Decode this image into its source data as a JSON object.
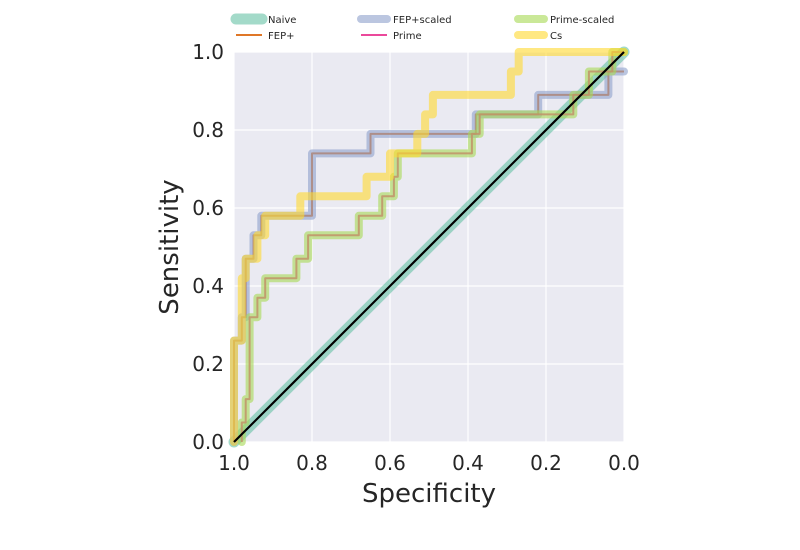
{
  "chart_data": {
    "type": "line",
    "title": "",
    "xlabel": "Specificity",
    "ylabel": "Sensitivity",
    "xlim": [
      1.0,
      0.0
    ],
    "ylim": [
      0.0,
      1.0
    ],
    "x_reversed": true,
    "grid": true,
    "background": "#eaeaf2",
    "legend": {
      "placement": "top",
      "columns": 3
    },
    "xticks": [
      "1.0",
      "0.8",
      "0.6",
      "0.4",
      "0.2",
      "0.0"
    ],
    "yticks": [
      "0.0",
      "0.2",
      "0.4",
      "0.6",
      "0.8",
      "1.0"
    ],
    "series": [
      {
        "name": "Naive",
        "color": "#66c2a5",
        "style": "thick",
        "x": [
          1.0,
          0.0
        ],
        "y": [
          0.0,
          1.0
        ]
      },
      {
        "name": "FEP+",
        "color": "#d95f02",
        "style": "thin",
        "x": [
          1.0,
          1.0,
          0.98,
          0.98,
          0.97,
          0.97,
          0.95,
          0.95,
          0.93,
          0.93,
          0.8,
          0.8,
          0.65,
          0.65,
          0.38,
          0.38,
          0.22,
          0.22,
          0.04,
          0.04,
          0.0
        ],
        "y": [
          0.0,
          0.26,
          0.26,
          0.32,
          0.32,
          0.47,
          0.47,
          0.53,
          0.53,
          0.58,
          0.58,
          0.74,
          0.74,
          0.79,
          0.79,
          0.84,
          0.84,
          0.89,
          0.89,
          0.95,
          0.95
        ]
      },
      {
        "name": "FEP+scaled",
        "color": "#8da0cb",
        "style": "thick",
        "x": [
          1.0,
          1.0,
          0.98,
          0.98,
          0.97,
          0.97,
          0.95,
          0.95,
          0.93,
          0.93,
          0.8,
          0.8,
          0.65,
          0.65,
          0.38,
          0.38,
          0.22,
          0.22,
          0.04,
          0.04,
          0.0
        ],
        "y": [
          0.0,
          0.26,
          0.26,
          0.32,
          0.32,
          0.47,
          0.47,
          0.53,
          0.53,
          0.58,
          0.58,
          0.74,
          0.74,
          0.79,
          0.79,
          0.84,
          0.84,
          0.89,
          0.89,
          0.95,
          0.95
        ]
      },
      {
        "name": "Prime",
        "color": "#e7298a",
        "style": "thin",
        "x": [
          0.98,
          0.98,
          0.97,
          0.97,
          0.96,
          0.96,
          0.94,
          0.94,
          0.92,
          0.92,
          0.84,
          0.84,
          0.81,
          0.81,
          0.68,
          0.68,
          0.62,
          0.62,
          0.59,
          0.59,
          0.58,
          0.58,
          0.39,
          0.39,
          0.37,
          0.37,
          0.13,
          0.13,
          0.09,
          0.09,
          0.03,
          0.03,
          0.01,
          0.01,
          0.0
        ],
        "y": [
          0.0,
          0.05,
          0.05,
          0.11,
          0.11,
          0.32,
          0.32,
          0.37,
          0.37,
          0.42,
          0.42,
          0.47,
          0.47,
          0.53,
          0.53,
          0.58,
          0.58,
          0.63,
          0.63,
          0.68,
          0.68,
          0.74,
          0.74,
          0.79,
          0.79,
          0.84,
          0.84,
          0.89,
          0.89,
          0.95,
          0.95,
          1.0,
          1.0,
          1.0,
          1.0
        ]
      },
      {
        "name": "Prime-scaled",
        "color": "#a6d854",
        "style": "thick",
        "x": [
          0.98,
          0.98,
          0.97,
          0.97,
          0.96,
          0.96,
          0.94,
          0.94,
          0.92,
          0.92,
          0.84,
          0.84,
          0.81,
          0.81,
          0.68,
          0.68,
          0.62,
          0.62,
          0.59,
          0.59,
          0.58,
          0.58,
          0.39,
          0.39,
          0.37,
          0.37,
          0.13,
          0.13,
          0.09,
          0.09,
          0.03,
          0.03,
          0.01,
          0.01,
          0.0
        ],
        "y": [
          0.0,
          0.05,
          0.05,
          0.11,
          0.11,
          0.32,
          0.32,
          0.37,
          0.37,
          0.42,
          0.42,
          0.47,
          0.47,
          0.53,
          0.53,
          0.58,
          0.58,
          0.63,
          0.63,
          0.68,
          0.68,
          0.74,
          0.74,
          0.79,
          0.79,
          0.84,
          0.84,
          0.89,
          0.89,
          0.95,
          0.95,
          1.0,
          1.0,
          1.0,
          1.0
        ]
      },
      {
        "name": "Cs",
        "color": "#ffd92f",
        "style": "thick",
        "x": [
          1.0,
          1.0,
          0.98,
          0.98,
          0.97,
          0.97,
          0.94,
          0.94,
          0.92,
          0.92,
          0.83,
          0.83,
          0.66,
          0.66,
          0.63,
          0.63,
          0.6,
          0.6,
          0.53,
          0.53,
          0.51,
          0.51,
          0.49,
          0.49,
          0.29,
          0.29,
          0.27,
          0.27,
          0.0
        ],
        "y": [
          0.0,
          0.26,
          0.26,
          0.42,
          0.42,
          0.47,
          0.47,
          0.53,
          0.53,
          0.58,
          0.58,
          0.63,
          0.63,
          0.68,
          0.68,
          0.68,
          0.68,
          0.74,
          0.74,
          0.79,
          0.79,
          0.84,
          0.84,
          0.89,
          0.89,
          0.95,
          0.95,
          1.0,
          1.0
        ]
      },
      {
        "name": "",
        "color": "#000000",
        "style": "reference",
        "x": [
          1.0,
          0.0
        ],
        "y": [
          0.0,
          1.0
        ]
      }
    ]
  }
}
